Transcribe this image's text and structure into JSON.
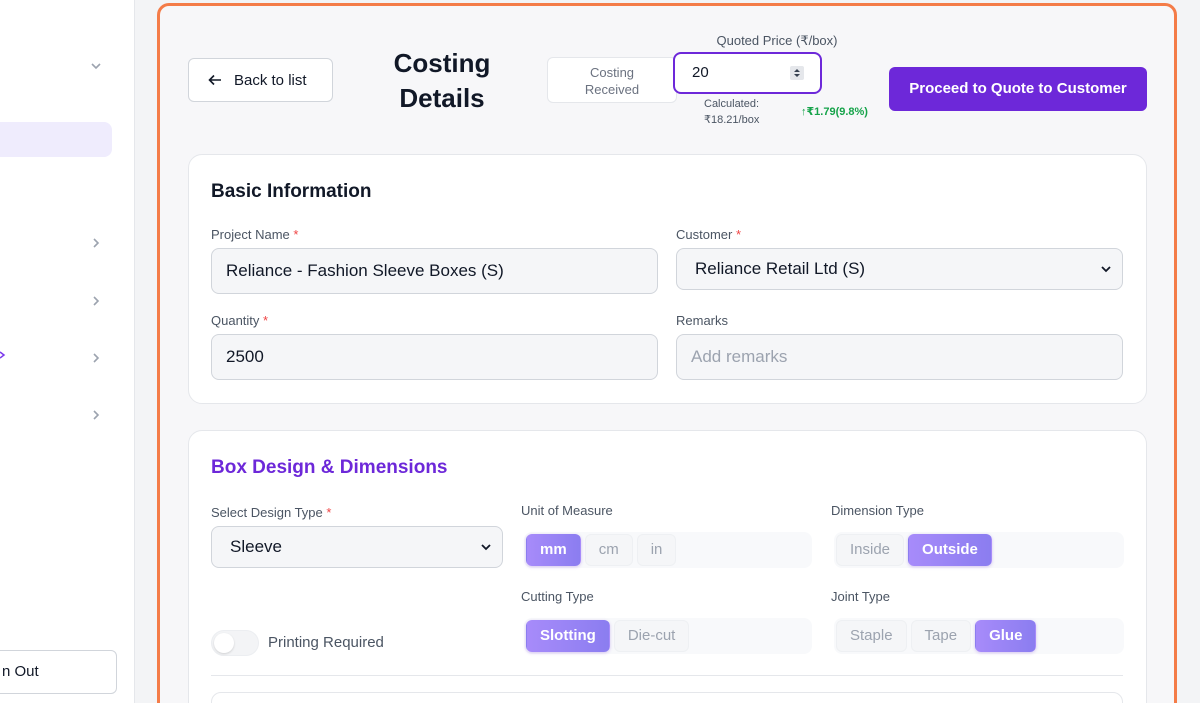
{
  "sidebar": {
    "signout_label": "n Out"
  },
  "header": {
    "back_label": "Back to list",
    "title_line1": "Costing",
    "title_line2": "Details",
    "status_line1": "Costing",
    "status_line2": "Received",
    "quoted_price_label": "Quoted Price (₹/box)",
    "quoted_price_value": "20",
    "calculated_label": "Calculated:",
    "calculated_value": "₹18.21/box",
    "difference": "↑₹1.79(9.8%)",
    "proceed_label": "Proceed to Quote to Customer"
  },
  "basic_info": {
    "title": "Basic Information",
    "project_name_label": "Project Name",
    "project_name_value": "Reliance - Fashion Sleeve Boxes (S)",
    "customer_label": "Customer",
    "customer_value": "Reliance Retail Ltd (S)",
    "quantity_label": "Quantity",
    "quantity_value": "2500",
    "remarks_label": "Remarks",
    "remarks_placeholder": "Add remarks",
    "required_mark": "*"
  },
  "box_design": {
    "title": "Box Design & Dimensions",
    "design_type_label": "Select Design Type",
    "design_type_value": "Sleeve",
    "unit_label": "Unit of Measure",
    "unit_options": [
      "mm",
      "cm",
      "in"
    ],
    "unit_selected": "mm",
    "dimension_label": "Dimension Type",
    "dimension_options": [
      "Inside",
      "Outside"
    ],
    "dimension_selected": "Outside",
    "cutting_label": "Cutting Type",
    "cutting_options": [
      "Slotting",
      "Die-cut"
    ],
    "cutting_selected": "Slotting",
    "joint_label": "Joint Type",
    "joint_options": [
      "Staple",
      "Tape",
      "Glue"
    ],
    "joint_selected": "Glue",
    "printing_label": "Printing Required",
    "printing_on": false
  },
  "colors": {
    "accent": "#6d28d9",
    "frame_border": "#f47c48",
    "positive": "#16a34a"
  }
}
